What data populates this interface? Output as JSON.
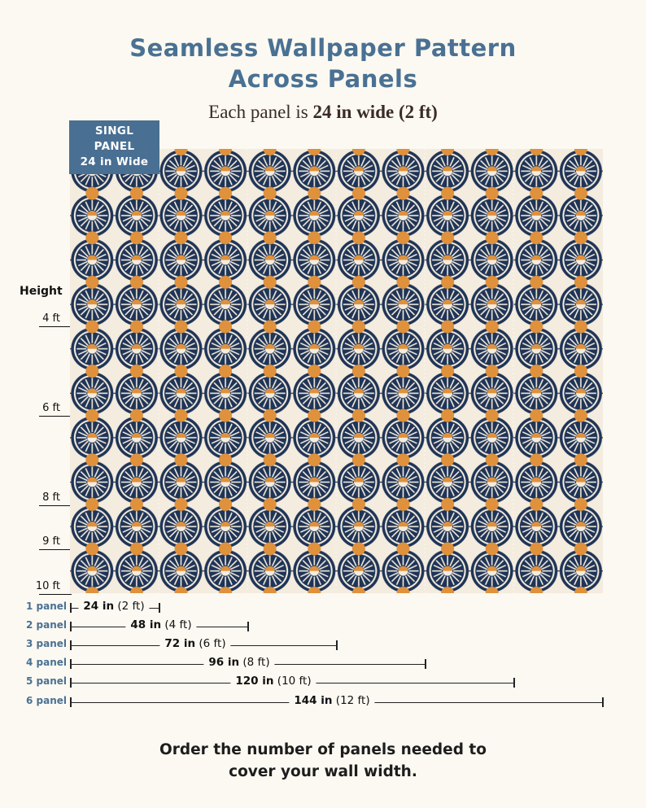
{
  "title": {
    "line1": "Seamless Wallpaper Pattern",
    "line2": "Across Panels"
  },
  "subtitle": {
    "prefix": "Each panel is",
    "bold": "24 in wide (2 ft)"
  },
  "single_panel_tag": {
    "line1": "SINGL",
    "line2": "PANEL",
    "line3": "24 in Wide"
  },
  "height_axis": {
    "label": "Height",
    "marks": [
      "4 ft",
      "6 ft",
      "8 ft",
      "9 ft",
      "10 ft"
    ]
  },
  "panels": [
    {
      "label": "1 panel",
      "value": "24 in",
      "unit": "(2 ft)"
    },
    {
      "label": "2 panel",
      "value": "48 in",
      "unit": "(4 ft)"
    },
    {
      "label": "3 panel",
      "value": "72 in",
      "unit": "(6 ft)"
    },
    {
      "label": "4 panel",
      "value": "96 in",
      "unit": "(8 ft)"
    },
    {
      "label": "5 panel",
      "value": "120 in",
      "unit": "(10 ft)"
    },
    {
      "label": "6 panel",
      "value": "144 in",
      "unit": "(12 ft)"
    }
  ],
  "footer": {
    "line1": "Order the number of panels needed to",
    "line2": "cover your wall width."
  },
  "colors": {
    "navy": "#1f3456",
    "orange": "#e0913c",
    "cream": "#f3ecdf",
    "title_blue": "#4a7193"
  }
}
